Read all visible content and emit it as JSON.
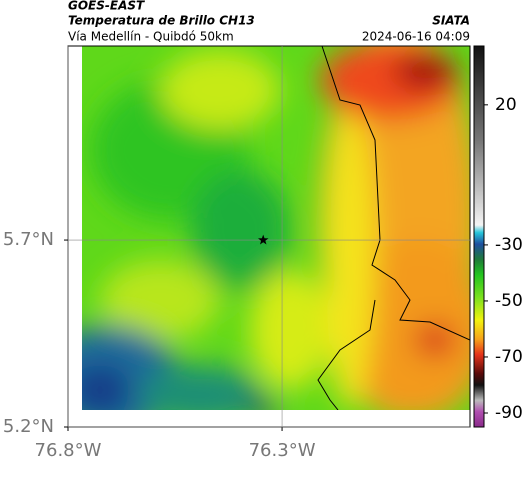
{
  "header": {
    "satellite": "GOES-EAST",
    "title": "Temperatura de Brillo CH13",
    "subtitle": "Vía Medellín - Quibdó 50km",
    "org": "SIATA",
    "datetime": "2024-06-16 04:09"
  },
  "map": {
    "xlim": [
      -76.8,
      -75.861
    ],
    "ylim": [
      5.2,
      6.219
    ],
    "xticks": [
      {
        "value": -76.8,
        "label": "76.8°W"
      },
      {
        "value": -76.3,
        "label": "76.3°W"
      }
    ],
    "yticks": [
      {
        "value": 5.2,
        "label": "5.2°N"
      },
      {
        "value": 5.7,
        "label": "5.7°N"
      }
    ],
    "grid": true,
    "station": {
      "lon": -76.344,
      "lat": 5.7
    }
  },
  "colorbar": {
    "ylim": [
      -95,
      41
    ],
    "yticks": [
      20,
      -30,
      -50,
      -70,
      -90
    ]
  }
}
